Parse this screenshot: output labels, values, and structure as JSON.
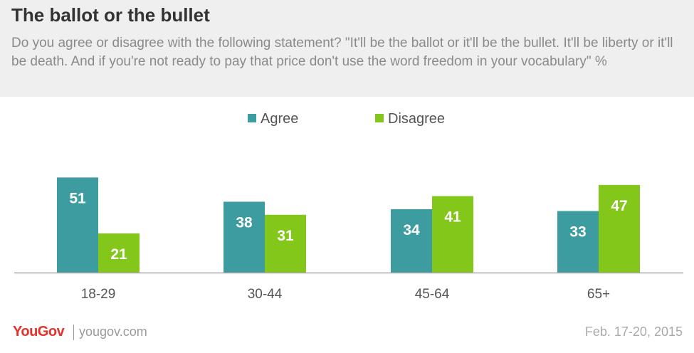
{
  "header": {
    "title": "The ballot or the bullet",
    "subtitle": "Do you agree or disagree with the following statement? \"It'll be the ballot or it'll be the bullet. It'll be liberty or it'll be death. And if you're not ready to pay that price don't use the word freedom in your vocabulary\" %"
  },
  "chart_data": {
    "type": "bar",
    "categories": [
      "18-29",
      "30-44",
      "45-64",
      "65+"
    ],
    "series": [
      {
        "name": "Agree",
        "values": [
          51,
          38,
          34,
          33
        ],
        "color": "#3d9ca0"
      },
      {
        "name": "Disagree",
        "values": [
          21,
          31,
          41,
          47
        ],
        "color": "#84c71b"
      }
    ],
    "ylim": [
      0,
      55
    ],
    "legend_position": "top-center",
    "grid": false
  },
  "footer": {
    "logo": "YouGov",
    "site": "yougov.com",
    "date": "Feb. 17-20, 2015"
  }
}
